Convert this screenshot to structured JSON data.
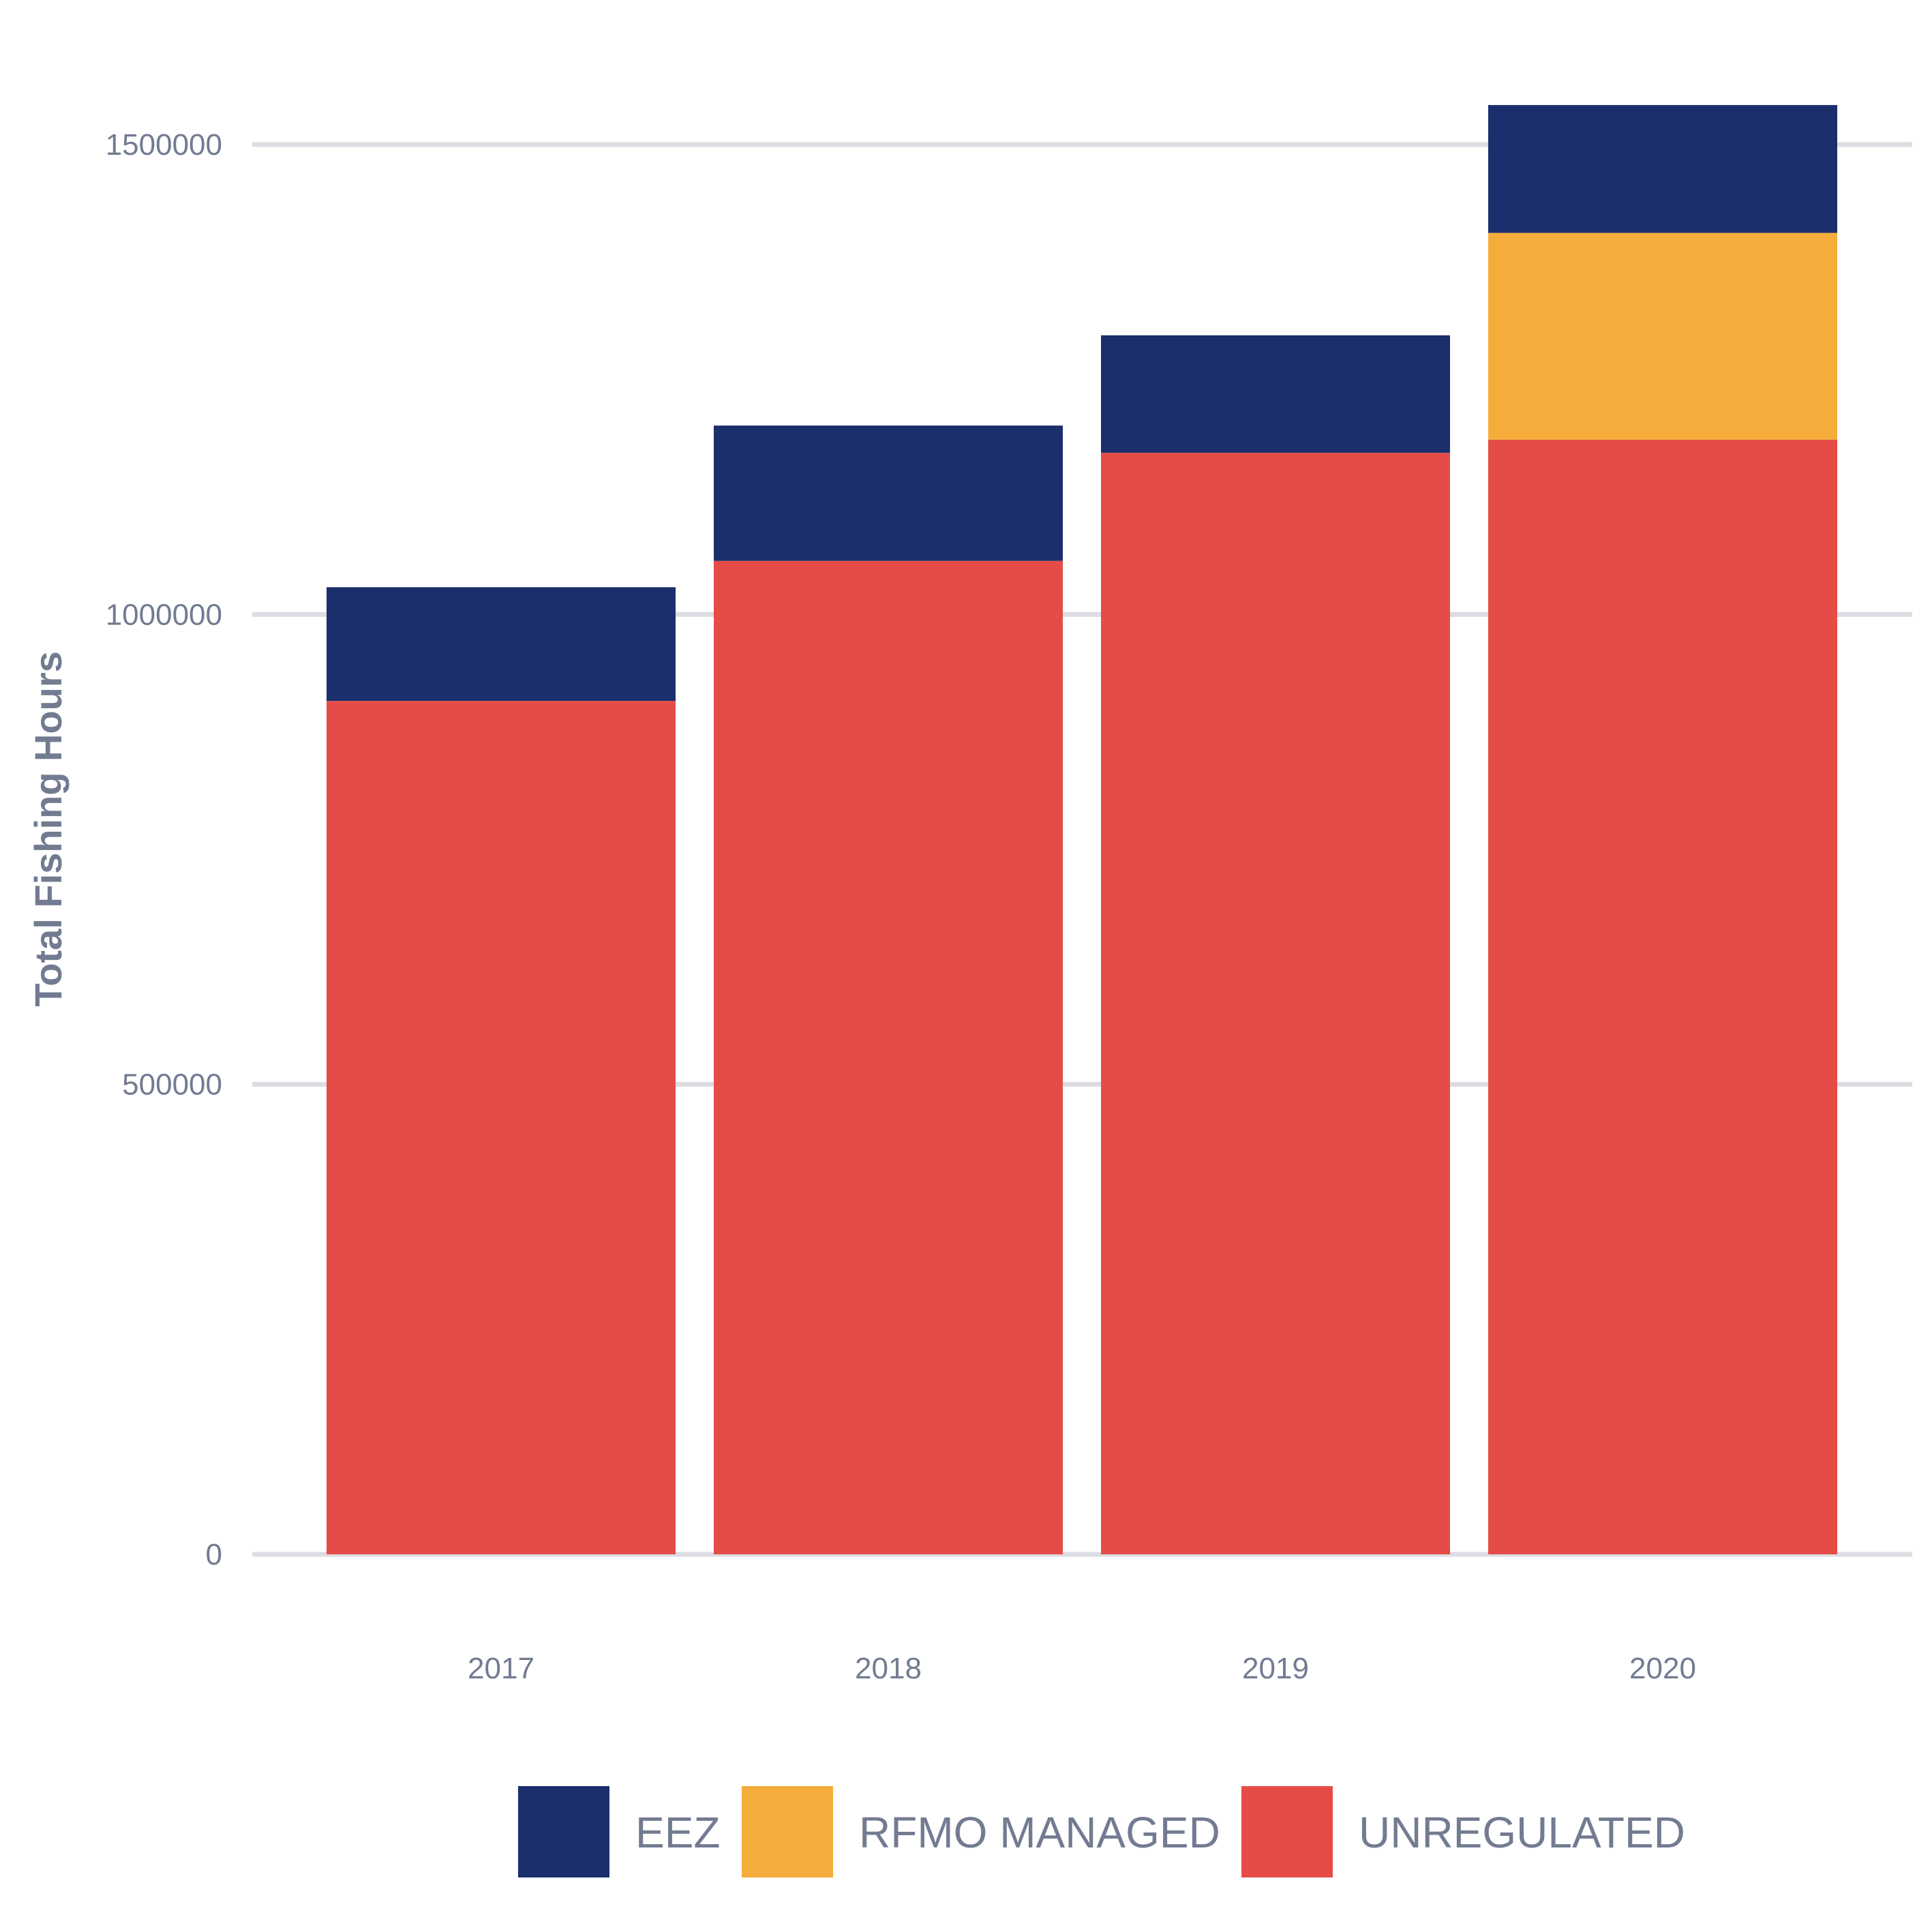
{
  "chart_data": {
    "type": "bar",
    "stacked": true,
    "title": "",
    "xlabel": "",
    "ylabel": "Total Fishing Hours",
    "categories": [
      "2017",
      "2018",
      "2019",
      "2020"
    ],
    "ylim": [
      0,
      1600000
    ],
    "yticks": [
      0,
      500000,
      1000000,
      1500000
    ],
    "ytick_labels": [
      "0",
      "500000",
      "1000000",
      "1500000"
    ],
    "grid": "horizontal",
    "legend_position": "bottom",
    "series": [
      {
        "name": "UNREGULATED",
        "color": "#e64c47",
        "values": [
          908000,
          1057000,
          1172000,
          1186000
        ]
      },
      {
        "name": "RFMO MANAGED",
        "color": "#f4ad3a",
        "values": [
          0,
          0,
          0,
          220000
        ]
      },
      {
        "name": "EEZ",
        "color": "#1b2f6c",
        "values": [
          121000,
          144000,
          125000,
          136000
        ]
      }
    ],
    "legend_order": [
      "EEZ",
      "RFMO MANAGED",
      "UNREGULATED"
    ]
  }
}
